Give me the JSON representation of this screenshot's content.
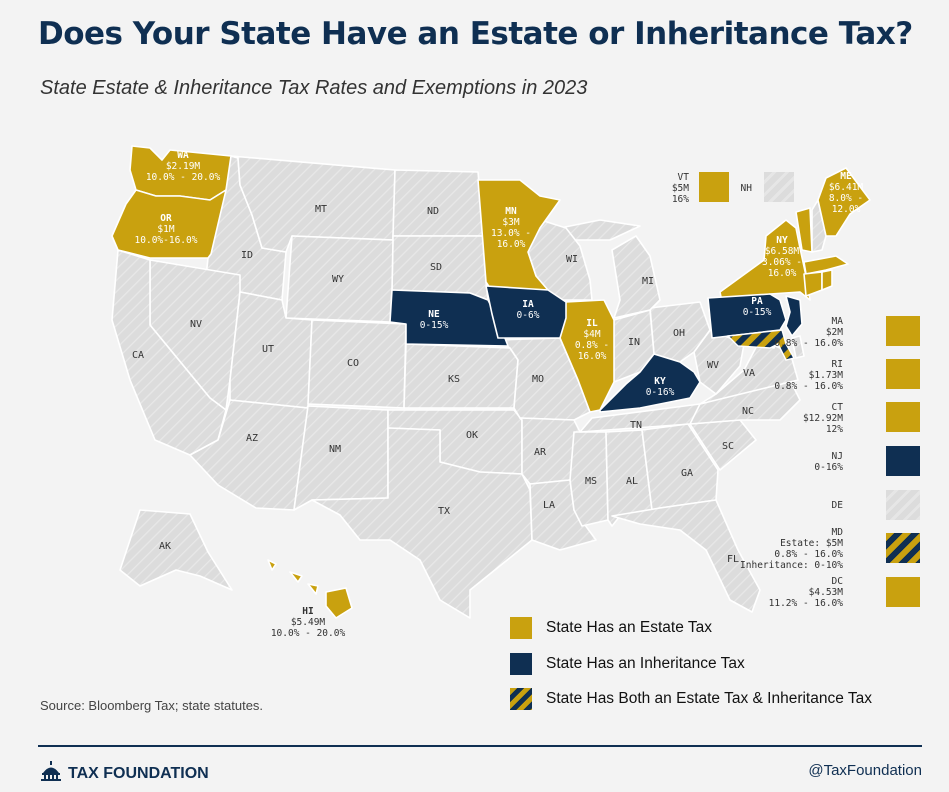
{
  "title": "Does Your State Have an Estate or Inheritance Tax?",
  "subtitle": "State Estate & Inheritance Tax Rates and Exemptions in 2023",
  "colors": {
    "estate": "#c9a10f",
    "inheritance": "#0f2f52",
    "none": "#dcdcdc",
    "background": "#f3f3f3"
  },
  "states": {
    "WA": {
      "name": "WA",
      "line1": "$2.19M",
      "line2": "10.0% - 20.0%",
      "tax": "estate"
    },
    "OR": {
      "name": "OR",
      "line1": "$1M",
      "line2": "10.0%-16.0%",
      "tax": "estate"
    },
    "MN": {
      "name": "MN",
      "line1": "$3M",
      "line2": "13.0% -",
      "line3": "16.0%",
      "tax": "estate"
    },
    "NE": {
      "name": "NE",
      "line1": "0-15%",
      "tax": "inheritance"
    },
    "IA": {
      "name": "IA",
      "line1": "0-6%",
      "tax": "inheritance"
    },
    "IL": {
      "name": "IL",
      "line1": "$4M",
      "line2": "0.8% -",
      "line3": "16.0%",
      "tax": "estate"
    },
    "KY": {
      "name": "KY",
      "line1": "0-16%",
      "tax": "inheritance"
    },
    "PA": {
      "name": "PA",
      "line1": "0-15%",
      "tax": "inheritance"
    },
    "NY": {
      "name": "NY",
      "line1": "$6.58M",
      "line2": "3.06% -",
      "line3": "16.0%",
      "tax": "estate"
    },
    "ME": {
      "name": "ME",
      "line1": "$6.41M",
      "line2": "8.0% -",
      "line3": "12.0%",
      "tax": "estate"
    },
    "HI": {
      "name": "HI",
      "line1": "$5.49M",
      "line2": "10.0% - 20.0%",
      "tax": "estate"
    },
    "MT": {
      "name": "MT"
    },
    "ND": {
      "name": "ND"
    },
    "ID": {
      "name": "ID"
    },
    "WY": {
      "name": "WY"
    },
    "SD": {
      "name": "SD"
    },
    "NV": {
      "name": "NV"
    },
    "UT": {
      "name": "UT"
    },
    "CO": {
      "name": "CO"
    },
    "CA": {
      "name": "CA"
    },
    "KS": {
      "name": "KS"
    },
    "MO": {
      "name": "MO"
    },
    "AZ": {
      "name": "AZ"
    },
    "NM": {
      "name": "NM"
    },
    "OK": {
      "name": "OK"
    },
    "AR": {
      "name": "AR"
    },
    "TX": {
      "name": "TX"
    },
    "LA": {
      "name": "LA"
    },
    "MS": {
      "name": "MS"
    },
    "AL": {
      "name": "AL"
    },
    "TN": {
      "name": "TN"
    },
    "GA": {
      "name": "GA"
    },
    "SC": {
      "name": "SC"
    },
    "NC": {
      "name": "NC"
    },
    "FL": {
      "name": "FL"
    },
    "VA": {
      "name": "VA"
    },
    "WV": {
      "name": "WV"
    },
    "OH": {
      "name": "OH"
    },
    "IN": {
      "name": "IN"
    },
    "MI": {
      "name": "MI"
    },
    "WI": {
      "name": "WI"
    },
    "AK": {
      "name": "AK"
    }
  },
  "small_states": {
    "VT": {
      "name": "VT",
      "line1": "$5M",
      "line2": "16%",
      "tax": "estate"
    },
    "NH": {
      "name": "NH",
      "tax": "none"
    },
    "MA": {
      "name": "MA",
      "line1": "$2M",
      "line2": "0.8% - 16.0%",
      "tax": "estate"
    },
    "RI": {
      "name": "RI",
      "line1": "$1.73M",
      "line2": "0.8% - 16.0%",
      "tax": "estate"
    },
    "CT": {
      "name": "CT",
      "line1": "$12.92M",
      "line2": "12%",
      "tax": "estate"
    },
    "NJ": {
      "name": "NJ",
      "line1": "0-16%",
      "tax": "inheritance"
    },
    "DE": {
      "name": "DE",
      "tax": "none"
    },
    "MD": {
      "name": "MD",
      "line1": "Estate: $5M",
      "line2": "0.8% - 16.0%",
      "line3": "Inheritance: 0-10%",
      "tax": "both"
    },
    "DC": {
      "name": "DC",
      "line1": "$4.53M",
      "line2": "11.2% - 16.0%",
      "tax": "estate"
    }
  },
  "legend": {
    "estate": "State Has an Estate Tax",
    "inheritance": "State Has an Inheritance Tax",
    "both": "State Has Both an Estate Tax & Inheritance Tax"
  },
  "source": "Source: Bloomberg Tax; state statutes.",
  "footer": {
    "brand": "TAX FOUNDATION",
    "handle": "@TaxFoundation"
  }
}
